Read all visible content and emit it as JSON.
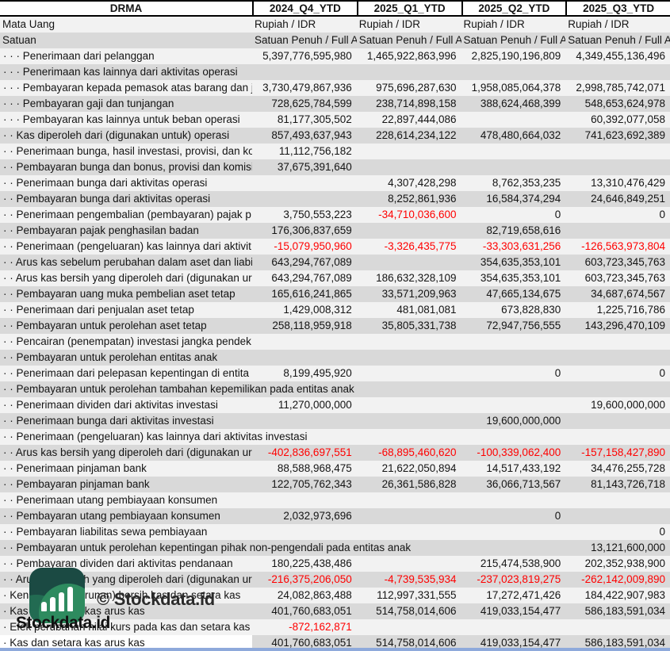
{
  "header": {
    "ticker": "DRMA",
    "columns": [
      "2024_Q4_YTD",
      "2025_Q1_YTD",
      "2025_Q2_YTD",
      "2025_Q3_YTD"
    ]
  },
  "table": {
    "meta_rows": [
      {
        "label": "Mata Uang",
        "values": [
          "Rupiah / IDR",
          "Rupiah / IDR",
          "Rupiah / IDR",
          "Rupiah / IDR"
        ]
      },
      {
        "label": "Satuan",
        "values": [
          "Satuan Penuh / Full A",
          "Satuan Penuh / Full A",
          "Satuan Penuh / Full A",
          "Satuan Penuh / Full A"
        ]
      }
    ],
    "rows": [
      {
        "label": "· · · Penerimaan dari pelanggan",
        "values": [
          "5,397,776,595,980",
          "1,465,922,863,996",
          "2,825,190,196,809",
          "4,349,455,136,496"
        ]
      },
      {
        "label": "· · · Penerimaan kas lainnya dari aktivitas operasi",
        "values": [
          "",
          "",
          "",
          ""
        ]
      },
      {
        "label": "· · · Pembayaran kepada pemasok atas barang dan ja",
        "values": [
          "3,730,479,867,936",
          "975,696,287,630",
          "1,958,085,064,378",
          "2,998,785,742,071"
        ]
      },
      {
        "label": "· · · Pembayaran gaji dan tunjangan",
        "values": [
          "728,625,784,599",
          "238,714,898,158",
          "388,624,468,399",
          "548,653,624,978"
        ]
      },
      {
        "label": "· · · Pembayaran kas lainnya untuk beban operasi",
        "values": [
          "81,177,305,502",
          "22,897,444,086",
          "",
          "60,392,077,058"
        ]
      },
      {
        "label": "· · Kas diperoleh dari (digunakan untuk) operasi",
        "values": [
          "857,493,637,943",
          "228,614,234,122",
          "478,480,664,032",
          "741,623,692,389"
        ]
      },
      {
        "label": "· · Penerimaan bunga, hasil investasi, provisi, dan ko",
        "values": [
          "11,112,756,182",
          "",
          "",
          ""
        ]
      },
      {
        "label": "· · Pembayaran bunga dan bonus, provisi dan komisi",
        "values": [
          "37,675,391,640",
          "",
          "",
          ""
        ]
      },
      {
        "label": "· · Penerimaan bunga dari aktivitas operasi",
        "values": [
          "",
          "4,307,428,298",
          "8,762,353,235",
          "13,310,476,429"
        ]
      },
      {
        "label": "· · Pembayaran bunga dari aktivitas operasi",
        "values": [
          "",
          "8,252,861,936",
          "16,584,374,294",
          "24,646,849,251"
        ]
      },
      {
        "label": "· · Penerimaan pengembalian (pembayaran) pajak p",
        "values": [
          "3,750,553,223",
          "-34,710,036,600",
          "0",
          "0"
        ]
      },
      {
        "label": "· · Pembayaran pajak penghasilan badan",
        "values": [
          "176,306,837,659",
          "",
          "82,719,658,616",
          ""
        ]
      },
      {
        "label": "· · Penerimaan (pengeluaran) kas lainnya dari aktivit",
        "values": [
          "-15,079,950,960",
          "-3,326,435,775",
          "-33,303,631,256",
          "-126,563,973,804"
        ]
      },
      {
        "label": "· · Arus kas sebelum perubahan dalam aset dan liabi",
        "values": [
          "643,294,767,089",
          "",
          "354,635,353,101",
          "603,723,345,763"
        ]
      },
      {
        "label": "· · Arus kas bersih yang diperoleh dari (digunakan ur",
        "values": [
          "643,294,767,089",
          "186,632,328,109",
          "354,635,353,101",
          "603,723,345,763"
        ]
      },
      {
        "label": "· · Pembayaran uang muka pembelian aset tetap",
        "values": [
          "165,616,241,865",
          "33,571,209,963",
          "47,665,134,675",
          "34,687,674,567"
        ]
      },
      {
        "label": "· · Penerimaan dari penjualan aset tetap",
        "values": [
          "1,429,008,312",
          "481,081,081",
          "673,828,830",
          "1,225,716,786"
        ]
      },
      {
        "label": "· · Pembayaran untuk perolehan aset tetap",
        "values": [
          "258,118,959,918",
          "35,805,331,738",
          "72,947,756,555",
          "143,296,470,109"
        ]
      },
      {
        "label": "· · Pencairan (penempatan) investasi jangka pendek",
        "values": [
          "",
          "",
          "",
          ""
        ]
      },
      {
        "label": "· · Pembayaran untuk perolehan entitas anak",
        "values": [
          "",
          "",
          "",
          ""
        ]
      },
      {
        "label": "· · Penerimaan dari pelepasan kepentingan di entita",
        "values": [
          "8,199,495,920",
          "",
          "0",
          "0"
        ]
      },
      {
        "label": "· · Pembayaran untuk perolehan tambahan kepemilikan pada entitas anak",
        "values": [
          "",
          "",
          "",
          ""
        ],
        "spill": true
      },
      {
        "label": "· · Penerimaan dividen dari aktivitas investasi",
        "values": [
          "11,270,000,000",
          "",
          "",
          "19,600,000,000"
        ]
      },
      {
        "label": "· · Penerimaan bunga dari aktivitas investasi",
        "values": [
          "",
          "",
          "19,600,000,000",
          ""
        ]
      },
      {
        "label": "· · Penerimaan (pengeluaran) kas lainnya dari aktivitas investasi",
        "values": [
          "",
          "",
          "",
          ""
        ],
        "spill": true
      },
      {
        "label": "· · Arus kas bersih yang diperoleh dari (digunakan ur",
        "values": [
          "-402,836,697,551",
          "-68,895,460,620",
          "-100,339,062,400",
          "-157,158,427,890"
        ]
      },
      {
        "label": "· · Penerimaan pinjaman bank",
        "values": [
          "88,588,968,475",
          "21,622,050,894",
          "14,517,433,192",
          "34,476,255,728"
        ]
      },
      {
        "label": "· · Pembayaran pinjaman bank",
        "values": [
          "122,705,762,343",
          "26,361,586,828",
          "36,066,713,567",
          "81,143,726,718"
        ]
      },
      {
        "label": "· · Penerimaan utang pembiayaan konsumen",
        "values": [
          "",
          "",
          "",
          ""
        ]
      },
      {
        "label": "· · Pembayaran utang pembiayaan konsumen",
        "values": [
          "2,032,973,696",
          "",
          "0",
          ""
        ]
      },
      {
        "label": "· · Pembayaran liabilitas sewa pembiayaan",
        "values": [
          "",
          "",
          "",
          "0"
        ]
      },
      {
        "label": "· · Pembayaran untuk perolehan kepentingan pihak non-pengendali pada entitas anak",
        "values": [
          "",
          "",
          "",
          "13,121,600,000"
        ],
        "spill": true
      },
      {
        "label": "· · Pembayaran dividen dari aktivitas pendanaan",
        "values": [
          "180,225,438,486",
          "",
          "215,474,538,900",
          "202,352,938,900"
        ]
      },
      {
        "label": "· · Arus kas bersih yang diperoleh dari (digunakan ur",
        "values": [
          "-216,375,206,050",
          "-4,739,535,934",
          "-237,023,819,275",
          "-262,142,009,890"
        ]
      },
      {
        "label": "· Kenaikan (penurunan) bersih kas dan setara kas",
        "values": [
          "24,082,863,488",
          "112,997,331,555",
          "17,272,471,426",
          "184,422,907,983"
        ]
      },
      {
        "label": "· Kas dan setara kas arus kas",
        "values": [
          "401,760,683,051",
          "514,758,014,606",
          "419,033,154,477",
          "586,183,591,034"
        ]
      },
      {
        "label": "· Efek perubahan nilai kurs pada kas dan setara kas",
        "values": [
          "-872,162,871",
          "",
          "",
          ""
        ]
      },
      {
        "label": "· Kas dan setara kas arus kas",
        "values": [
          "401,760,683,051",
          "514,758,014,606",
          "419,033,154,477",
          "586,183,591,034"
        ]
      }
    ]
  },
  "watermark": {
    "copyright": "© Stockdata.id",
    "brand": "Stockdata.id"
  },
  "colors": {
    "negative_value": "#ff0000",
    "stripe_light": "#f2f2f2",
    "stripe_dark": "#d9d9d9",
    "logo_dark_teal": "#1b4a43",
    "logo_green": "#2e8b5f",
    "bottom_bar": "#8ea9db"
  }
}
